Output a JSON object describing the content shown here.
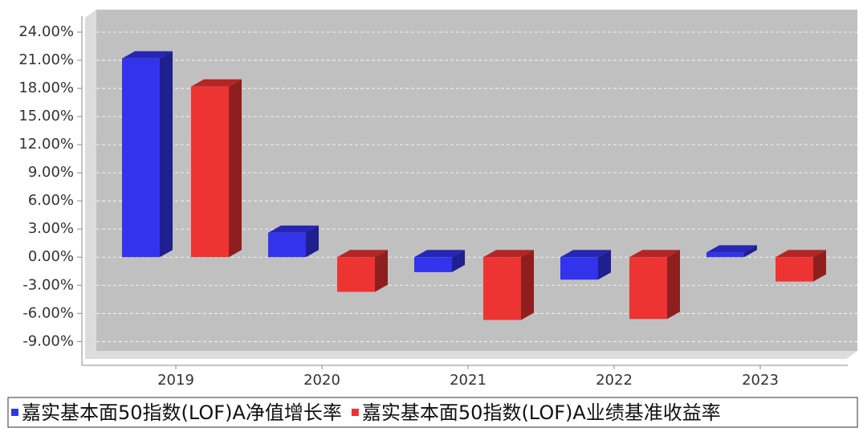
{
  "chart_data": {
    "type": "bar3d",
    "categories": [
      "2019",
      "2020",
      "2021",
      "2022",
      "2023"
    ],
    "series": [
      {
        "name": "嘉实基本面50指数(LOF)A净值增长率",
        "color": "#3333ee",
        "values": [
          21.2,
          2.6,
          -1.6,
          -2.4,
          0.5
        ]
      },
      {
        "name": "嘉实基本面50指数(LOF)A业绩基准收益率",
        "color": "#ee3333",
        "values": [
          18.2,
          -3.7,
          -6.7,
          -6.6,
          -2.6
        ]
      }
    ],
    "ylim": [
      -10,
      26.4
    ],
    "yticks": [
      {
        "value": -9,
        "label": "-9.00%"
      },
      {
        "value": -6,
        "label": "-6.00%"
      },
      {
        "value": -3,
        "label": "-3.00%"
      },
      {
        "value": 0,
        "label": "0.00%"
      },
      {
        "value": 3,
        "label": "3.00%"
      },
      {
        "value": 6,
        "label": "6.00%"
      },
      {
        "value": 9,
        "label": "9.00%"
      },
      {
        "value": 12,
        "label": "12.00%"
      },
      {
        "value": 15,
        "label": "15.00%"
      },
      {
        "value": 18,
        "label": "18.00%"
      },
      {
        "value": 21,
        "label": "21.00%"
      },
      {
        "value": 24,
        "label": "24.00%"
      }
    ],
    "grid": true
  }
}
